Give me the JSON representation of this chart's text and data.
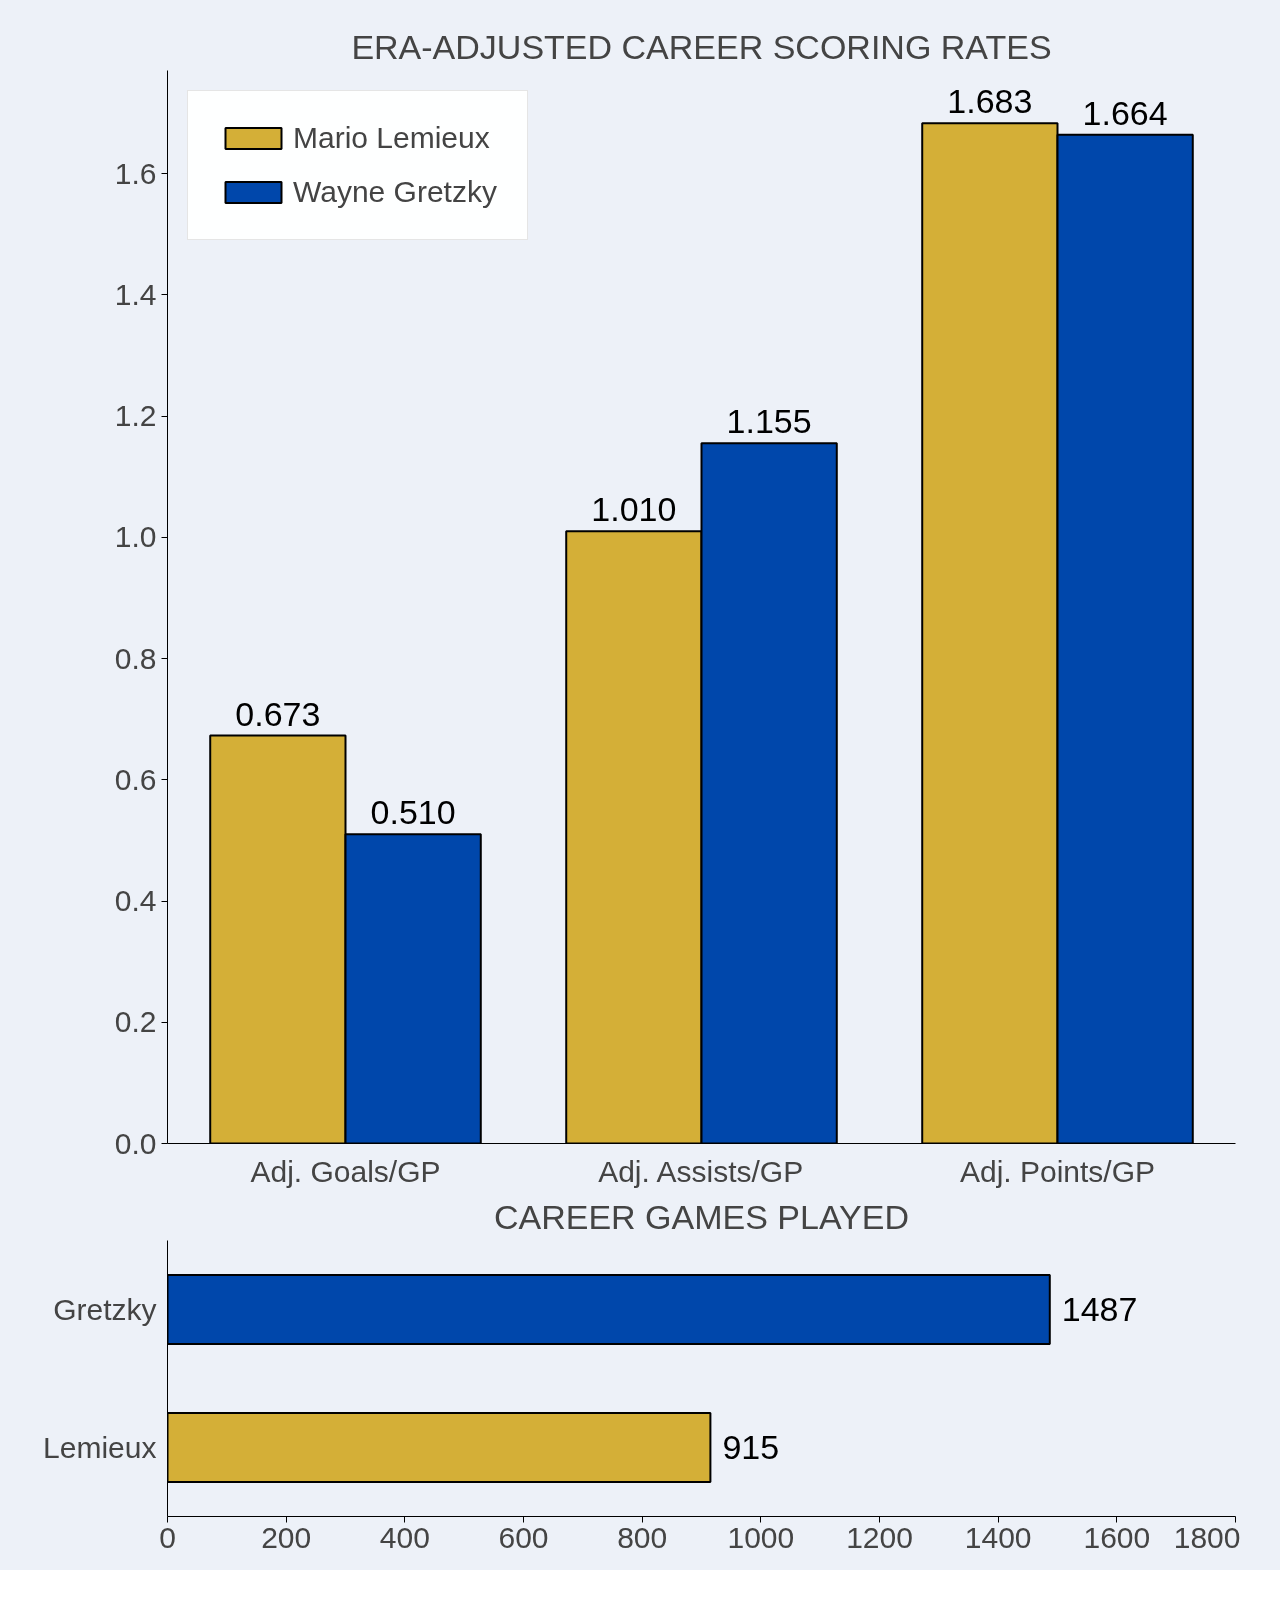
{
  "chart_data": [
    {
      "type": "bar",
      "title": "ERA-ADJUSTED CAREER SCORING RATES",
      "categories": [
        "Adj. Goals/GP",
        "Adj. Assists/GP",
        "Adj. Points/GP"
      ],
      "series": [
        {
          "name": "Mario Lemieux",
          "color": "#d4af37",
          "values": [
            0.673,
            1.01,
            1.683
          ],
          "value_labels": [
            "0.673",
            "1.010",
            "1.683"
          ]
        },
        {
          "name": "Wayne Gretzky",
          "color": "#0047ab",
          "values": [
            0.51,
            1.155,
            1.664
          ],
          "value_labels": [
            "0.510",
            "1.155",
            "1.664"
          ]
        }
      ],
      "ylim": [
        0,
        1.77
      ],
      "yticks": [
        {
          "value": 0,
          "label": "0.0"
        },
        0.2,
        0.4,
        0.6,
        0.8,
        {
          "value": 1,
          "label": "1.0"
        },
        1.2,
        1.4,
        1.6
      ],
      "legend": "top left",
      "grid": false
    },
    {
      "type": "bar",
      "orientation": "horizontal",
      "title": "CAREER GAMES PLAYED",
      "categories": [
        "Gretzky",
        "Lemieux"
      ],
      "values": [
        1487,
        915
      ],
      "colors": [
        "#0047ab",
        "#d4af37"
      ],
      "xlim": [
        0,
        1800
      ],
      "xticks": [
        0,
        200,
        400,
        600,
        800,
        1000,
        1200,
        1400,
        1600,
        1800
      ],
      "data_labels": true,
      "grid": false
    }
  ]
}
